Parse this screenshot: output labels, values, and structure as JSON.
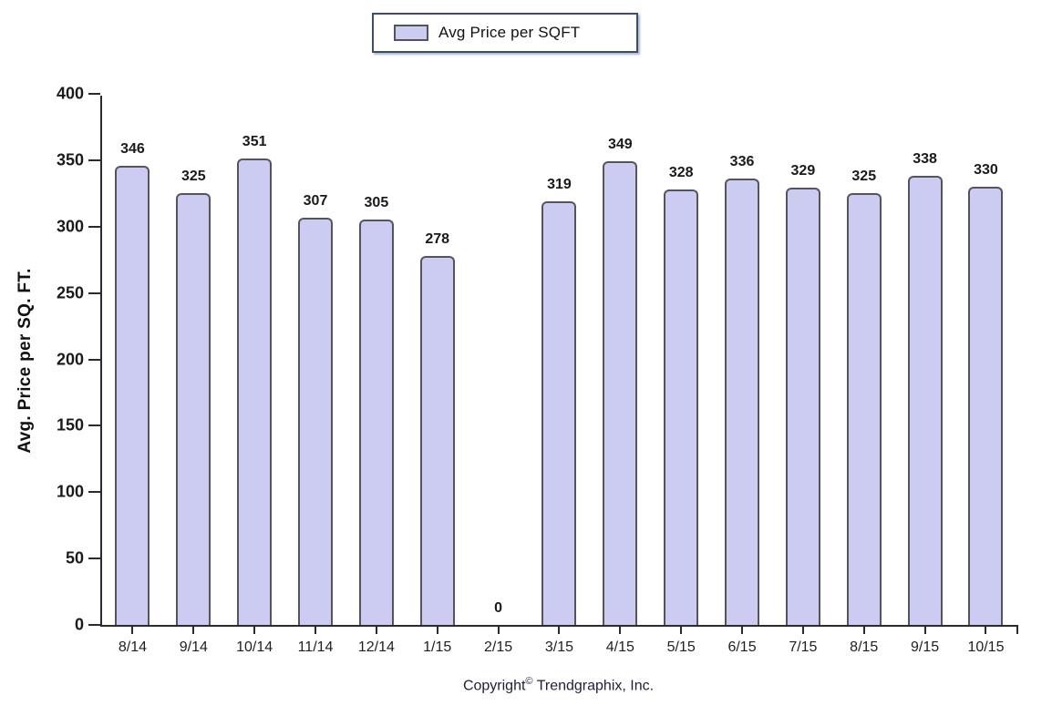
{
  "chart_data": {
    "type": "bar",
    "title": "",
    "categories": [
      "8/14",
      "9/14",
      "10/14",
      "11/14",
      "12/14",
      "1/15",
      "2/15",
      "3/15",
      "4/15",
      "5/15",
      "6/15",
      "7/15",
      "8/15",
      "9/15",
      "10/15"
    ],
    "values": [
      346,
      325,
      351,
      307,
      305,
      278,
      0,
      319,
      349,
      328,
      336,
      329,
      325,
      338,
      330
    ],
    "series": [
      {
        "name": "Avg Price per SQFT",
        "values": [
          346,
          325,
          351,
          307,
          305,
          278,
          0,
          319,
          349,
          328,
          336,
          329,
          325,
          338,
          330
        ]
      }
    ],
    "xlabel": "",
    "ylabel": "Avg. Price per SQ. FT.",
    "ylim": [
      0,
      400
    ],
    "yticks": [
      0,
      50,
      100,
      150,
      200,
      250,
      300,
      350,
      400
    ],
    "grid": false,
    "legend_position": "top-center",
    "bar_fill_color": "#ccccf2",
    "bar_border_color": "#54545c",
    "axis_color": "#2b2b2b",
    "data_labels_shown": true
  },
  "legend": {
    "label": "Avg Price per SQFT",
    "swatch_color": "#ccccf2",
    "border_color": "#3b4d77"
  },
  "footer": {
    "prefix": "Copyright",
    "symbol": "©",
    "suffix": "Trendgraphix, Inc."
  }
}
